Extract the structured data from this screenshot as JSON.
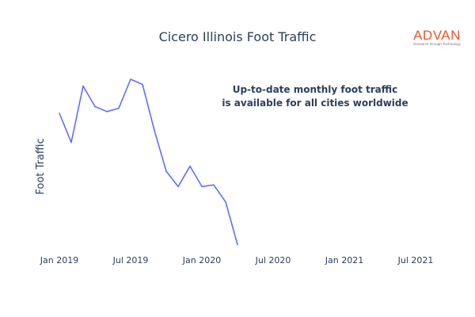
{
  "brand": {
    "name": "ADVAN",
    "tagline": "Research through Technology",
    "color": "#e4572e"
  },
  "annotation": {
    "line1": "Up-to-date monthly foot traffic",
    "line2": "is available for all cities worldwide"
  },
  "chart_data": {
    "type": "line",
    "title": "Cicero Illinois Foot Traffic",
    "xlabel": "",
    "ylabel": "Foot Traffic",
    "x_tick_labels": [
      "Jan 2019",
      "Jul 2019",
      "Jan 2020",
      "Jul 2020",
      "Jan 2021",
      "Jul 2021"
    ],
    "xlim": [
      "2018-12-01",
      "2021-08-01"
    ],
    "ylim": [
      0,
      100
    ],
    "grid": false,
    "y_tick_labels_shown": false,
    "line_color": "#636efa",
    "x": [
      "2019-01",
      "2019-02",
      "2019-03",
      "2019-04",
      "2019-05",
      "2019-06",
      "2019-07",
      "2019-08",
      "2019-09",
      "2019-10",
      "2019-11",
      "2019-12",
      "2020-01",
      "2020-02",
      "2020-03",
      "2020-04"
    ],
    "values": [
      80,
      63,
      96,
      84,
      81,
      83,
      100,
      97,
      70,
      46,
      37,
      49,
      37,
      38,
      28,
      3
    ]
  }
}
